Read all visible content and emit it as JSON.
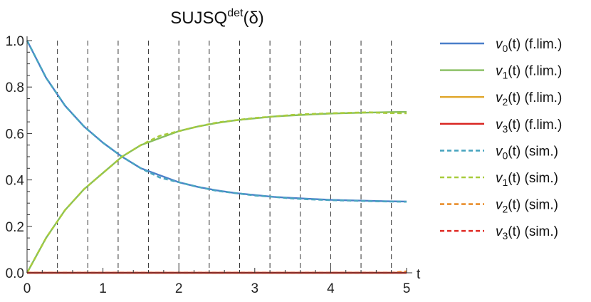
{
  "chart_data": {
    "type": "line",
    "title": {
      "base": "SUJSQ",
      "superscript": "det",
      "args": "(δ)"
    },
    "xlabel": "t",
    "ylabel": "",
    "xlim": [
      0,
      5
    ],
    "ylim": [
      0,
      1
    ],
    "x_ticks": [
      "0",
      "1",
      "2",
      "3",
      "4",
      "5"
    ],
    "y_ticks": [
      "0.0",
      "0.2",
      "0.4",
      "0.6",
      "0.8",
      "1.0"
    ],
    "grid": false,
    "vertical_dashed_lines_at": [
      0.4,
      0.8,
      1.2,
      1.6,
      2.0,
      2.4,
      2.8,
      3.2,
      3.6,
      4.0,
      4.4,
      4.8
    ],
    "legend_placement": "right",
    "legend": [
      {
        "var": "v",
        "sub": "0",
        "suffix": "(t) (f.lim.)",
        "color": "#4a7fc9",
        "style": "solid"
      },
      {
        "var": "v",
        "sub": "1",
        "suffix": "(t) (f.lim.)",
        "color": "#86bd5e",
        "style": "solid"
      },
      {
        "var": "v",
        "sub": "2",
        "suffix": "(t) (f.lim.)",
        "color": "#e0a62b",
        "style": "solid"
      },
      {
        "var": "v",
        "sub": "3",
        "suffix": "(t) (f.lim.)",
        "color": "#d8231e",
        "style": "solid"
      },
      {
        "var": "v",
        "sub": "0",
        "suffix": "(t) (sim.)",
        "color": "#4aa5c0",
        "style": "dashed"
      },
      {
        "var": "v",
        "sub": "1",
        "suffix": "(t) (sim.)",
        "color": "#a8cc3c",
        "style": "dashed"
      },
      {
        "var": "v",
        "sub": "2",
        "suffix": "(t) (sim.)",
        "color": "#e98e2c",
        "style": "dashed"
      },
      {
        "var": "v",
        "sub": "3",
        "suffix": "(t) (sim.)",
        "color": "#e0302a",
        "style": "dashed"
      }
    ],
    "series": [
      {
        "color": "#4a7fc9",
        "style": "solid",
        "x": [
          0,
          0.25,
          0.5,
          0.75,
          1,
          1.25,
          1.5,
          1.75,
          2,
          2.25,
          2.5,
          2.75,
          3,
          3.25,
          3.5,
          3.75,
          4,
          4.25,
          4.5,
          4.75,
          5
        ],
        "y": [
          1.0,
          0.84,
          0.72,
          0.63,
          0.56,
          0.5,
          0.45,
          0.42,
          0.39,
          0.37,
          0.355,
          0.343,
          0.335,
          0.327,
          0.322,
          0.318,
          0.314,
          0.312,
          0.31,
          0.308,
          0.307
        ]
      },
      {
        "color": "#86bd5e",
        "style": "solid",
        "x": [
          0,
          0.25,
          0.5,
          0.75,
          1,
          1.25,
          1.5,
          1.75,
          2,
          2.25,
          2.5,
          2.75,
          3,
          3.25,
          3.5,
          3.75,
          4,
          4.25,
          4.5,
          4.75,
          5
        ],
        "y": [
          0.0,
          0.15,
          0.27,
          0.36,
          0.43,
          0.5,
          0.55,
          0.58,
          0.61,
          0.63,
          0.645,
          0.657,
          0.665,
          0.673,
          0.678,
          0.682,
          0.686,
          0.688,
          0.69,
          0.692,
          0.693
        ]
      },
      {
        "color": "#e0a62b",
        "style": "solid",
        "x": [
          0,
          5
        ],
        "y": [
          0.0,
          0.0
        ]
      },
      {
        "color": "#d8231e",
        "style": "solid",
        "x": [
          0,
          5
        ],
        "y": [
          0.0,
          0.0
        ]
      },
      {
        "color": "#4aa5c0",
        "style": "dashed",
        "x": [
          0,
          0.25,
          0.5,
          0.75,
          1,
          1.25,
          1.5,
          1.75,
          2,
          2.25,
          2.5,
          2.75,
          3,
          3.25,
          3.5,
          3.75,
          4,
          4.25,
          4.5,
          4.75,
          5
        ],
        "y": [
          1.0,
          0.84,
          0.72,
          0.63,
          0.56,
          0.5,
          0.45,
          0.41,
          0.39,
          0.37,
          0.353,
          0.343,
          0.333,
          0.327,
          0.32,
          0.316,
          0.313,
          0.311,
          0.309,
          0.307,
          0.306
        ]
      },
      {
        "color": "#a8cc3c",
        "style": "dashed",
        "x": [
          0,
          0.25,
          0.5,
          0.75,
          1,
          1.25,
          1.5,
          1.75,
          2,
          2.25,
          2.5,
          2.75,
          3,
          3.25,
          3.5,
          3.75,
          4,
          4.25,
          4.5,
          4.75,
          5
        ],
        "y": [
          0.0,
          0.15,
          0.27,
          0.36,
          0.43,
          0.5,
          0.55,
          0.59,
          0.61,
          0.63,
          0.647,
          0.657,
          0.667,
          0.673,
          0.68,
          0.684,
          0.687,
          0.689,
          0.691,
          0.688,
          0.687
        ]
      },
      {
        "color": "#e98e2c",
        "style": "dashed",
        "x": [
          0,
          4.8,
          4.9,
          5
        ],
        "y": [
          0.0,
          0.0,
          0.003,
          0.006
        ]
      },
      {
        "color": "#e0302a",
        "style": "dashed",
        "x": [
          0,
          5
        ],
        "y": [
          0.0,
          0.0
        ]
      }
    ]
  }
}
